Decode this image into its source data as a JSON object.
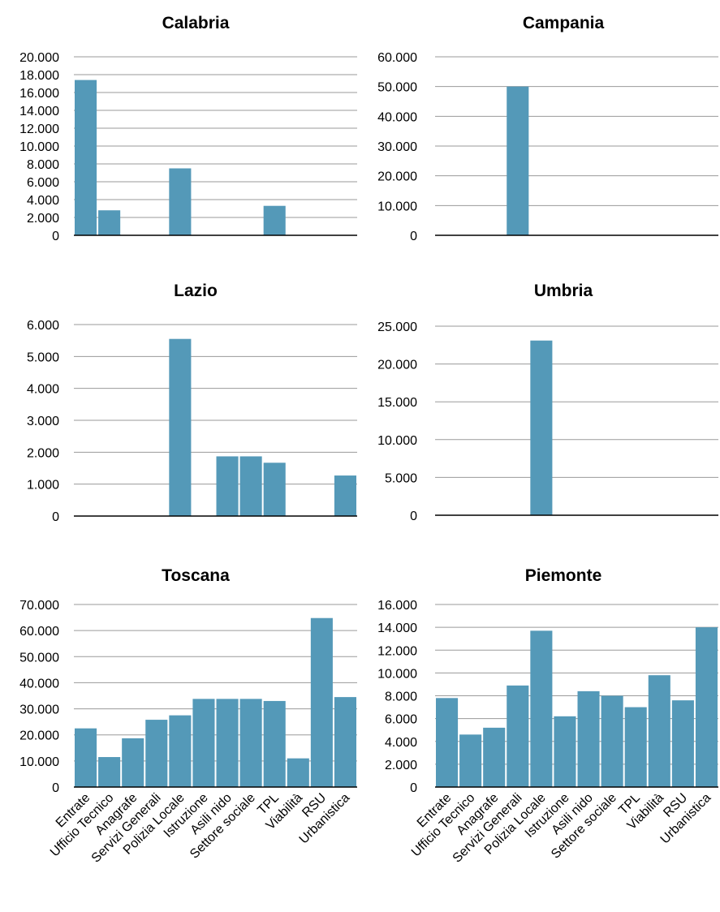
{
  "categories": [
    "Entrate",
    "Ufficio Tecnico",
    "Anagrafe",
    "Servizi Generali",
    "Polizia Locale",
    "Istruzione",
    "Asili nido",
    "Settore sociale",
    "TPL",
    "Viabilità",
    "RSU",
    "Urbanistica"
  ],
  "colors": {
    "bar": "#5499b8",
    "axis": "#000000",
    "grid": "#9a9a9a",
    "background": "#ffffff"
  },
  "chart_data": [
    {
      "type": "bar",
      "title": "Calabria",
      "categories": [
        "Entrate",
        "Ufficio Tecnico",
        "Anagrafe",
        "Servizi Generali",
        "Polizia Locale",
        "Istruzione",
        "Asili nido",
        "Settore sociale",
        "TPL",
        "Viabilità",
        "RSU",
        "Urbanistica"
      ],
      "values": [
        17400,
        2800,
        0,
        0,
        7500,
        0,
        0,
        0,
        3300,
        0,
        0,
        0
      ],
      "ylim": [
        0,
        20000
      ],
      "yticks": [
        0,
        2000,
        4000,
        6000,
        8000,
        10000,
        12000,
        14000,
        16000,
        18000,
        20000
      ],
      "ytick_labels": [
        "0",
        "2.000",
        "4.000",
        "6.000",
        "8.000",
        "10.000",
        "12.000",
        "14.000",
        "16.000",
        "18.000",
        "20.000"
      ],
      "grid": true,
      "show_xticklabels": false,
      "xlabel": "",
      "ylabel": ""
    },
    {
      "type": "bar",
      "title": "Campania",
      "categories": [
        "Entrate",
        "Ufficio Tecnico",
        "Anagrafe",
        "Servizi Generali",
        "Polizia Locale",
        "Istruzione",
        "Asili nido",
        "Settore sociale",
        "TPL",
        "Viabilità",
        "RSU",
        "Urbanistica"
      ],
      "values": [
        0,
        0,
        0,
        50000,
        0,
        0,
        0,
        0,
        0,
        0,
        0,
        0
      ],
      "ylim": [
        0,
        60000
      ],
      "yticks": [
        0,
        10000,
        20000,
        30000,
        40000,
        50000,
        60000
      ],
      "ytick_labels": [
        "0",
        "10.000",
        "20.000",
        "30.000",
        "40.000",
        "50.000",
        "60.000"
      ],
      "grid": true,
      "show_xticklabels": false,
      "xlabel": "",
      "ylabel": ""
    },
    {
      "type": "bar",
      "title": "Lazio",
      "categories": [
        "Entrate",
        "Ufficio Tecnico",
        "Anagrafe",
        "Servizi Generali",
        "Polizia Locale",
        "Istruzione",
        "Asili nido",
        "Settore sociale",
        "TPL",
        "Viabilità",
        "RSU",
        "Urbanistica"
      ],
      "values": [
        0,
        0,
        0,
        0,
        5550,
        0,
        1870,
        1870,
        1670,
        0,
        0,
        1270
      ],
      "ylim": [
        0,
        6000
      ],
      "yticks": [
        0,
        1000,
        2000,
        3000,
        4000,
        5000,
        6000
      ],
      "ytick_labels": [
        "0",
        "1.000",
        "2.000",
        "3.000",
        "4.000",
        "5.000",
        "6.000"
      ],
      "grid": true,
      "show_xticklabels": false,
      "xlabel": "",
      "ylabel": ""
    },
    {
      "type": "bar",
      "title": "Umbria",
      "categories": [
        "Entrate",
        "Ufficio Tecnico",
        "Anagrafe",
        "Servizi Generali",
        "Polizia Locale",
        "Istruzione",
        "Asili nido",
        "Settore sociale",
        "TPL",
        "Viabilità",
        "RSU",
        "Urbanistica"
      ],
      "values": [
        0,
        0,
        0,
        0,
        23100,
        0,
        0,
        0,
        0,
        0,
        0,
        0
      ],
      "ylim": [
        0,
        25000
      ],
      "yticks": [
        0,
        5000,
        10000,
        15000,
        20000,
        25000
      ],
      "ytick_labels": [
        "0",
        "5.000",
        "10.000",
        "15.000",
        "20.000",
        "25.000"
      ],
      "grid": true,
      "show_xticklabels": false,
      "xlabel": "",
      "ylabel": ""
    },
    {
      "type": "bar",
      "title": "Toscana",
      "categories": [
        "Entrate",
        "Ufficio Tecnico",
        "Anagrafe",
        "Servizi Generali",
        "Polizia Locale",
        "Istruzione",
        "Asili nido",
        "Settore sociale",
        "TPL",
        "Viabilità",
        "RSU",
        "Urbanistica"
      ],
      "values": [
        22500,
        11500,
        18700,
        25800,
        27500,
        33800,
        33800,
        33800,
        33000,
        11000,
        64800,
        34500
      ],
      "ylim": [
        0,
        70000
      ],
      "yticks": [
        0,
        10000,
        20000,
        30000,
        40000,
        50000,
        60000,
        70000
      ],
      "ytick_labels": [
        "0",
        "10.000",
        "20.000",
        "30.000",
        "40.000",
        "50.000",
        "60.000",
        "70.000"
      ],
      "grid": true,
      "show_xticklabels": true,
      "xlabel": "",
      "ylabel": ""
    },
    {
      "type": "bar",
      "title": "Piemonte",
      "categories": [
        "Entrate",
        "Ufficio Tecnico",
        "Anagrafe",
        "Servizi Generali",
        "Polizia Locale",
        "Istruzione",
        "Asili nido",
        "Settore sociale",
        "TPL",
        "Viabilità",
        "RSU",
        "Urbanistica"
      ],
      "values": [
        7800,
        4600,
        5200,
        8900,
        13700,
        6200,
        8400,
        8000,
        7000,
        9800,
        7600,
        14000
      ],
      "ylim": [
        0,
        16000
      ],
      "yticks": [
        0,
        2000,
        4000,
        6000,
        8000,
        10000,
        12000,
        14000,
        16000
      ],
      "ytick_labels": [
        "0",
        "2.000",
        "4.000",
        "6.000",
        "8.000",
        "10.000",
        "12.000",
        "14.000",
        "16.000"
      ],
      "grid": true,
      "show_xticklabels": true,
      "xlabel": "",
      "ylabel": ""
    }
  ]
}
